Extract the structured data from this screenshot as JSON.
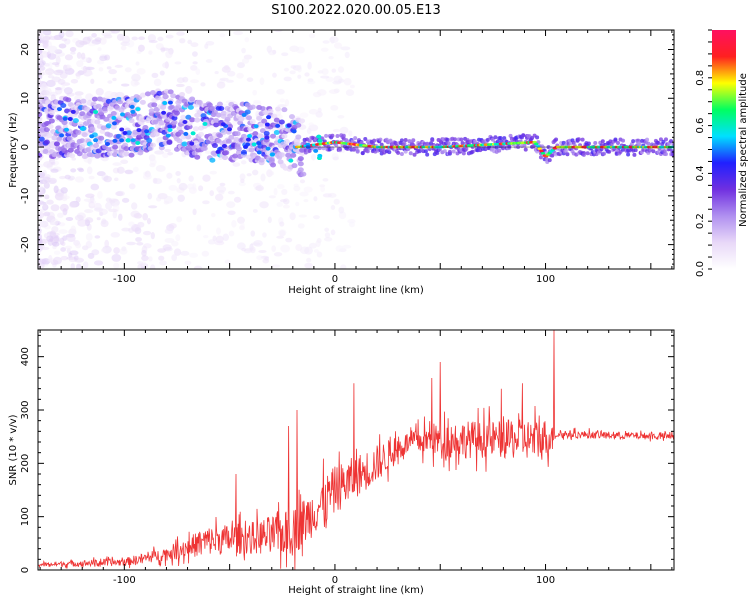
{
  "title": "S100.2022.020.00.05.E13",
  "chart_data": [
    {
      "type": "heatmap",
      "xlabel": "Height of straight line (km)",
      "ylabel": "Frequency (Hz)",
      "xlim": [
        -141,
        161
      ],
      "ylim": [
        -25,
        24
      ],
      "xticks": [
        -100,
        0,
        100
      ],
      "yticks": [
        20,
        10,
        0,
        -10,
        -20
      ],
      "colorbar": {
        "label": "Normalized spectral amplitude",
        "range": [
          0.0,
          1.0
        ],
        "ticks": [
          0.0,
          0.2,
          0.4,
          0.6,
          0.8
        ],
        "colors": [
          "#ffffff",
          "#e8d8f8",
          "#b090f0",
          "#7030e0",
          "#2020ff",
          "#00e0ff",
          "#00ff60",
          "#ffff00",
          "#ff2020",
          "#ff1060"
        ]
      },
      "ridge": [
        {
          "x": -135,
          "f": 4
        },
        {
          "x": -120,
          "f": 4
        },
        {
          "x": -100,
          "f": 4
        },
        {
          "x": -80,
          "f": 6
        },
        {
          "x": -60,
          "f": 3
        },
        {
          "x": -40,
          "f": 3
        },
        {
          "x": -25,
          "f": 2
        },
        {
          "x": -18,
          "f": 0
        },
        {
          "x": 0,
          "f": 1
        },
        {
          "x": 20,
          "f": 0
        },
        {
          "x": 50,
          "f": 0
        },
        {
          "x": 95,
          "f": 1
        },
        {
          "x": 100,
          "f": -2
        },
        {
          "x": 105,
          "f": 0
        },
        {
          "x": 161,
          "f": 0
        }
      ]
    },
    {
      "type": "line",
      "xlabel": "Height of straight line (km)",
      "ylabel": "SNR (10 * v/v)",
      "xlim": [
        -141,
        161
      ],
      "ylim": [
        0,
        450
      ],
      "xticks": [
        -100,
        0,
        100
      ],
      "yticks": [
        0,
        100,
        200,
        300,
        400
      ],
      "color": "#ee3333",
      "envelope": [
        {
          "x": -141,
          "base": 10,
          "spread": 8
        },
        {
          "x": -100,
          "base": 15,
          "spread": 15
        },
        {
          "x": -80,
          "base": 30,
          "spread": 25
        },
        {
          "x": -60,
          "base": 55,
          "spread": 55
        },
        {
          "x": -40,
          "base": 60,
          "spread": 60
        },
        {
          "x": -20,
          "base": 70,
          "spread": 90
        },
        {
          "x": 0,
          "base": 150,
          "spread": 90
        },
        {
          "x": 20,
          "base": 200,
          "spread": 70
        },
        {
          "x": 35,
          "base": 240,
          "spread": 40
        },
        {
          "x": 50,
          "base": 245,
          "spread": 70
        },
        {
          "x": 75,
          "base": 245,
          "spread": 70
        },
        {
          "x": 100,
          "base": 245,
          "spread": 80
        },
        {
          "x": 105,
          "base": 255,
          "spread": 15
        },
        {
          "x": 161,
          "base": 250,
          "spread": 12
        }
      ],
      "peaks": [
        {
          "x": -47,
          "y": 180
        },
        {
          "x": -22,
          "y": 270
        },
        {
          "x": -18,
          "y": 300
        },
        {
          "x": 9,
          "y": 350
        },
        {
          "x": 46,
          "y": 360
        },
        {
          "x": 50,
          "y": 390
        },
        {
          "x": 79,
          "y": 340
        },
        {
          "x": 89,
          "y": 350
        },
        {
          "x": 104,
          "y": 450
        }
      ]
    }
  ]
}
